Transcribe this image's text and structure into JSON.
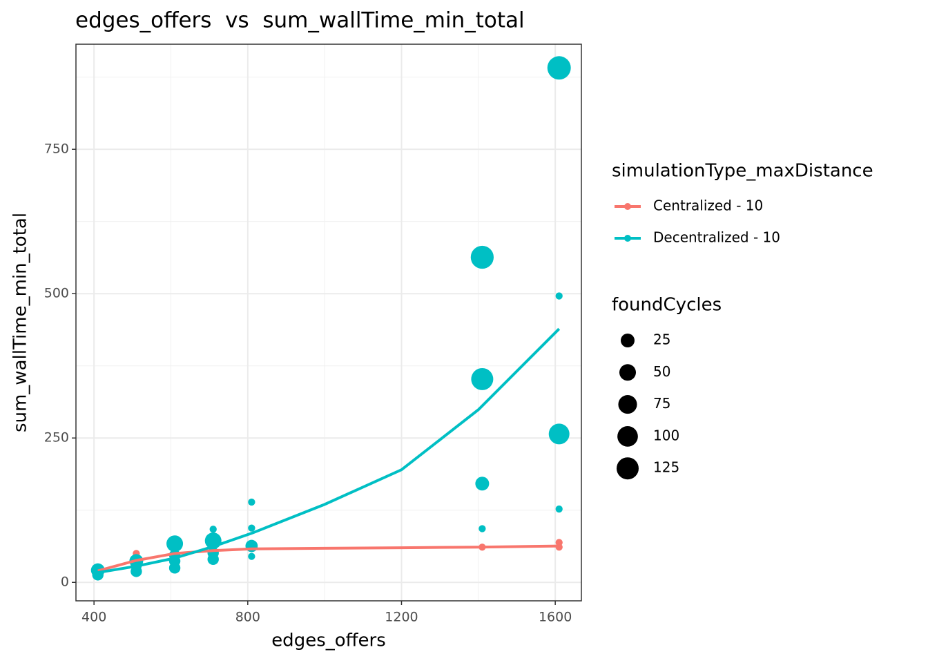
{
  "chart_data": {
    "type": "scatter",
    "title": "edges_offers  vs  sum_wallTime_min_total",
    "x_label": "edges_offers",
    "y_label": "sum_wallTime_min_total",
    "xlim": [
      353,
      1668
    ],
    "ylim": [
      -32,
      932
    ],
    "xticks": [
      400,
      800,
      1200,
      1600
    ],
    "yticks": [
      0,
      250,
      500,
      750
    ],
    "grid": true,
    "color_legend_title": "simulationType_maxDistance",
    "size_legend_title": "foundCycles",
    "size_legend": [
      25,
      50,
      75,
      100,
      125
    ],
    "series": [
      {
        "name": "Centralized - 10",
        "color": "#f8766d",
        "x": [
          510,
          610,
          1410,
          1610,
          1610
        ],
        "values": [
          50,
          63,
          61,
          69,
          61
        ],
        "sizes": [
          0,
          0,
          0,
          0,
          0
        ],
        "smooth_x": [
          410,
          510,
          610,
          710,
          810,
          1000,
          1200,
          1400,
          1610
        ],
        "smooth_values": [
          20,
          38,
          50,
          55,
          58,
          59,
          60,
          61,
          63
        ]
      },
      {
        "name": "Decentralized - 10",
        "color": "#00bfc4",
        "x": [
          410,
          410,
          510,
          510,
          510,
          610,
          610,
          610,
          610,
          710,
          710,
          710,
          710,
          810,
          810,
          810,
          810,
          1410,
          1410,
          1410,
          1410,
          1610,
          1610,
          1610,
          1610
        ],
        "values": [
          21,
          13,
          37,
          19,
          30,
          67,
          25,
          37,
          47,
          72,
          92,
          40,
          51,
          139,
          94,
          63,
          45,
          563,
          352,
          171,
          93,
          891,
          496,
          257,
          127
        ],
        "sizes": [
          25,
          10,
          25,
          10,
          10,
          50,
          10,
          10,
          10,
          50,
          0,
          10,
          10,
          0,
          0,
          15,
          0,
          140,
          125,
          25,
          0,
          149,
          0,
          103,
          0
        ],
        "smooth_x": [
          410,
          510,
          610,
          710,
          810,
          1000,
          1200,
          1400,
          1610
        ],
        "smooth_values": [
          17,
          28,
          42,
          62,
          85,
          135,
          195,
          299,
          439
        ]
      }
    ]
  }
}
